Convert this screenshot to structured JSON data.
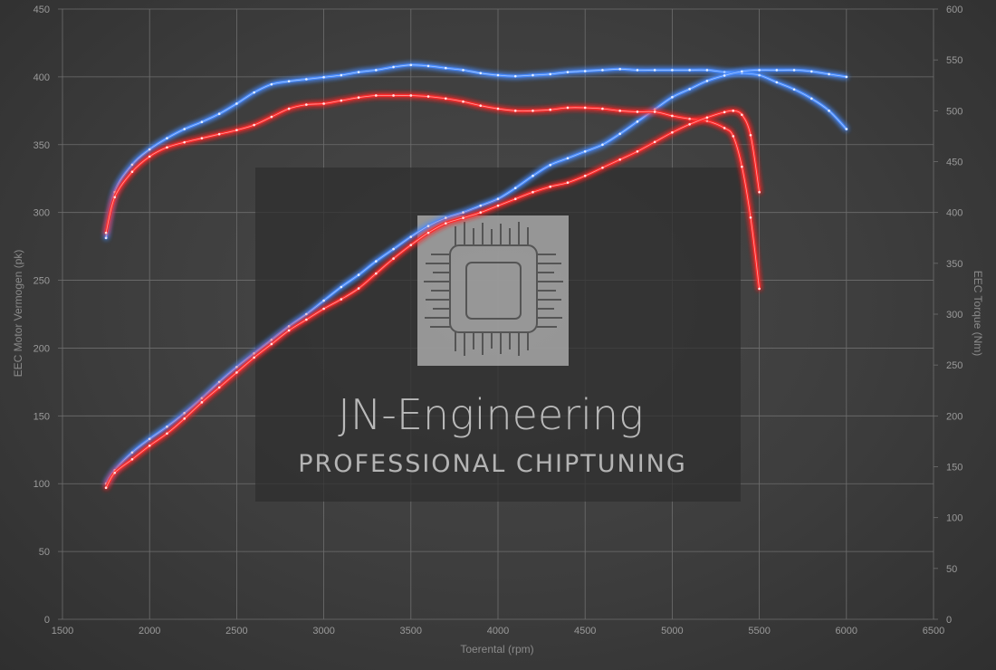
{
  "chart_data": {
    "type": "line",
    "xlabel": "Toerental (rpm)",
    "ylabel_left": "EEC Motor Vermogen (pk)",
    "ylabel_right": "EEC Torque (Nm)",
    "xlim": [
      1500,
      6500
    ],
    "ylim_left": [
      0,
      450
    ],
    "ylim_right": [
      0,
      600
    ],
    "x_ticks": [
      1500,
      2000,
      2500,
      3000,
      3500,
      4000,
      4500,
      5000,
      5500,
      6000,
      6500
    ],
    "y_ticks_left": [
      0,
      50,
      100,
      150,
      200,
      250,
      300,
      350,
      400,
      450
    ],
    "y_ticks_right": [
      0,
      50,
      100,
      150,
      200,
      250,
      300,
      350,
      400,
      450,
      500,
      550,
      600
    ],
    "grid": true,
    "series": [
      {
        "color": "#4a8cff",
        "axis": "right",
        "points": [
          [
            1750,
            375
          ],
          [
            1800,
            420
          ],
          [
            1900,
            447
          ],
          [
            2000,
            462
          ],
          [
            2100,
            473
          ],
          [
            2200,
            482
          ],
          [
            2300,
            489
          ],
          [
            2400,
            497
          ],
          [
            2500,
            507
          ],
          [
            2600,
            518
          ],
          [
            2700,
            526
          ],
          [
            2800,
            529
          ],
          [
            2900,
            531
          ],
          [
            3000,
            533
          ],
          [
            3100,
            535
          ],
          [
            3200,
            538
          ],
          [
            3300,
            540
          ],
          [
            3400,
            543
          ],
          [
            3500,
            545
          ],
          [
            3600,
            544
          ],
          [
            3700,
            542
          ],
          [
            3800,
            540
          ],
          [
            3900,
            537
          ],
          [
            4000,
            535
          ],
          [
            4100,
            534
          ],
          [
            4200,
            535
          ],
          [
            4300,
            536
          ],
          [
            4400,
            538
          ],
          [
            4500,
            539
          ],
          [
            4600,
            540
          ],
          [
            4700,
            541
          ],
          [
            4800,
            540
          ],
          [
            4900,
            540
          ],
          [
            5000,
            540
          ],
          [
            5100,
            540
          ],
          [
            5200,
            540
          ],
          [
            5300,
            538
          ],
          [
            5400,
            537
          ],
          [
            5500,
            535
          ],
          [
            5600,
            528
          ],
          [
            5700,
            521
          ],
          [
            5800,
            512
          ],
          [
            5900,
            500
          ],
          [
            6000,
            482
          ]
        ]
      },
      {
        "color": "#4a8cff",
        "axis": "left",
        "points": [
          [
            1750,
            100
          ],
          [
            1800,
            110
          ],
          [
            1900,
            123
          ],
          [
            2000,
            133
          ],
          [
            2100,
            142
          ],
          [
            2200,
            152
          ],
          [
            2300,
            163
          ],
          [
            2400,
            175
          ],
          [
            2500,
            186
          ],
          [
            2600,
            196
          ],
          [
            2700,
            206
          ],
          [
            2800,
            216
          ],
          [
            2900,
            225
          ],
          [
            3000,
            235
          ],
          [
            3100,
            245
          ],
          [
            3200,
            254
          ],
          [
            3300,
            264
          ],
          [
            3400,
            273
          ],
          [
            3500,
            282
          ],
          [
            3600,
            290
          ],
          [
            3700,
            296
          ],
          [
            3800,
            300
          ],
          [
            3900,
            305
          ],
          [
            4000,
            310
          ],
          [
            4100,
            318
          ],
          [
            4200,
            327
          ],
          [
            4300,
            335
          ],
          [
            4400,
            340
          ],
          [
            4500,
            345
          ],
          [
            4600,
            350
          ],
          [
            4700,
            358
          ],
          [
            4800,
            367
          ],
          [
            4900,
            376
          ],
          [
            5000,
            385
          ],
          [
            5100,
            391
          ],
          [
            5200,
            397
          ],
          [
            5300,
            401
          ],
          [
            5400,
            404
          ],
          [
            5500,
            405
          ],
          [
            5600,
            405
          ],
          [
            5700,
            405
          ],
          [
            5800,
            404
          ],
          [
            5900,
            402
          ],
          [
            6000,
            400
          ]
        ]
      },
      {
        "color": "#ff2b2b",
        "axis": "right",
        "points": [
          [
            1750,
            380
          ],
          [
            1800,
            415
          ],
          [
            1900,
            440
          ],
          [
            2000,
            455
          ],
          [
            2100,
            464
          ],
          [
            2200,
            469
          ],
          [
            2300,
            473
          ],
          [
            2400,
            477
          ],
          [
            2500,
            481
          ],
          [
            2600,
            486
          ],
          [
            2700,
            494
          ],
          [
            2800,
            502
          ],
          [
            2900,
            506
          ],
          [
            3000,
            507
          ],
          [
            3100,
            510
          ],
          [
            3200,
            513
          ],
          [
            3300,
            515
          ],
          [
            3400,
            515
          ],
          [
            3500,
            515
          ],
          [
            3600,
            514
          ],
          [
            3700,
            512
          ],
          [
            3800,
            509
          ],
          [
            3900,
            505
          ],
          [
            4000,
            502
          ],
          [
            4100,
            500
          ],
          [
            4200,
            500
          ],
          [
            4300,
            501
          ],
          [
            4400,
            503
          ],
          [
            4500,
            503
          ],
          [
            4600,
            502
          ],
          [
            4700,
            500
          ],
          [
            4800,
            499
          ],
          [
            4900,
            499
          ],
          [
            5000,
            495
          ],
          [
            5100,
            492
          ],
          [
            5200,
            490
          ],
          [
            5300,
            483
          ],
          [
            5350,
            475
          ],
          [
            5400,
            445
          ],
          [
            5450,
            395
          ],
          [
            5500,
            325
          ]
        ]
      },
      {
        "color": "#ff2b2b",
        "axis": "left",
        "points": [
          [
            1750,
            97
          ],
          [
            1800,
            108
          ],
          [
            1900,
            118
          ],
          [
            2000,
            128
          ],
          [
            2100,
            137
          ],
          [
            2200,
            148
          ],
          [
            2300,
            160
          ],
          [
            2400,
            171
          ],
          [
            2500,
            182
          ],
          [
            2600,
            193
          ],
          [
            2700,
            203
          ],
          [
            2800,
            213
          ],
          [
            2900,
            221
          ],
          [
            3000,
            229
          ],
          [
            3100,
            236
          ],
          [
            3200,
            244
          ],
          [
            3300,
            255
          ],
          [
            3400,
            266
          ],
          [
            3500,
            276
          ],
          [
            3600,
            285
          ],
          [
            3700,
            292
          ],
          [
            3800,
            296
          ],
          [
            3900,
            300
          ],
          [
            4000,
            305
          ],
          [
            4100,
            310
          ],
          [
            4200,
            315
          ],
          [
            4300,
            319
          ],
          [
            4400,
            322
          ],
          [
            4500,
            327
          ],
          [
            4600,
            333
          ],
          [
            4700,
            339
          ],
          [
            4800,
            345
          ],
          [
            4900,
            352
          ],
          [
            5000,
            359
          ],
          [
            5100,
            365
          ],
          [
            5200,
            370
          ],
          [
            5300,
            374
          ],
          [
            5350,
            375
          ],
          [
            5400,
            372
          ],
          [
            5450,
            357
          ],
          [
            5500,
            315
          ]
        ]
      }
    ]
  },
  "watermark": {
    "title": "JN-Engineering",
    "subtitle": "PROFESSIONAL CHIPTUNING"
  }
}
